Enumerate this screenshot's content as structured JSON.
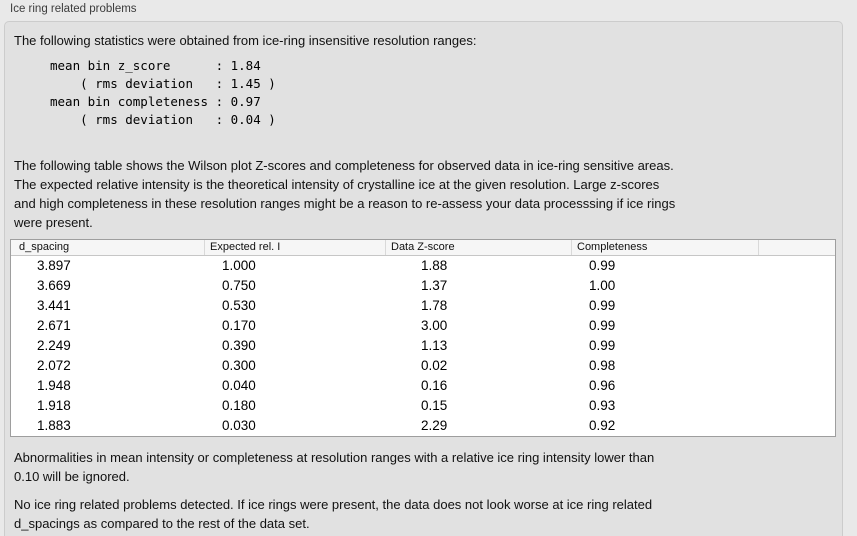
{
  "colors": {
    "outer_bg": "#e9e9e9",
    "panel_bg": "#e1e1e1",
    "panel_border": "#cccccc",
    "table_border": "#9e9e9e",
    "table_header_bg": "#f6f6f6",
    "text": "#1c1c1c"
  },
  "header": {
    "title": "Ice ring related problems"
  },
  "stats": {
    "intro": "The following statistics were obtained from ice-ring insensitive resolution ranges:",
    "mono_lines": "mean bin z_score      : 1.84\n    ( rms deviation   : 1.45 )\nmean bin completeness : 0.97\n    ( rms deviation   : 0.04 )"
  },
  "description": "The following table shows the Wilson plot Z-scores and completeness for observed data in ice-ring sensitive areas.\nThe expected relative intensity is the theoretical intensity of crystalline ice at the given resolution. Large z-scores\nand high completeness in these resolution ranges might be a reason to re-assess your data processsing if ice rings\nwere present.",
  "table": {
    "columns": [
      "d_spacing",
      "Expected rel. I",
      "Data Z-score",
      "Completeness"
    ],
    "rows": [
      [
        "3.897",
        "1.000",
        "1.88",
        "0.99"
      ],
      [
        "3.669",
        "0.750",
        "1.37",
        "1.00"
      ],
      [
        "3.441",
        "0.530",
        "1.78",
        "0.99"
      ],
      [
        "2.671",
        "0.170",
        "3.00",
        "0.99"
      ],
      [
        "2.249",
        "0.390",
        "1.13",
        "0.99"
      ],
      [
        "2.072",
        "0.300",
        "0.02",
        "0.98"
      ],
      [
        "1.948",
        "0.040",
        "0.16",
        "0.96"
      ],
      [
        "1.918",
        "0.180",
        "0.15",
        "0.93"
      ],
      [
        "1.883",
        "0.030",
        "2.29",
        "0.92"
      ]
    ]
  },
  "footer": {
    "note1": "Abnormalities in mean intensity or completeness at resolution ranges with a relative ice ring intensity lower than\n0.10 will be ignored.",
    "note2": "No ice ring related problems detected. If ice rings were present, the data does not look worse at ice ring related\nd_spacings as compared to the rest of the data set."
  }
}
